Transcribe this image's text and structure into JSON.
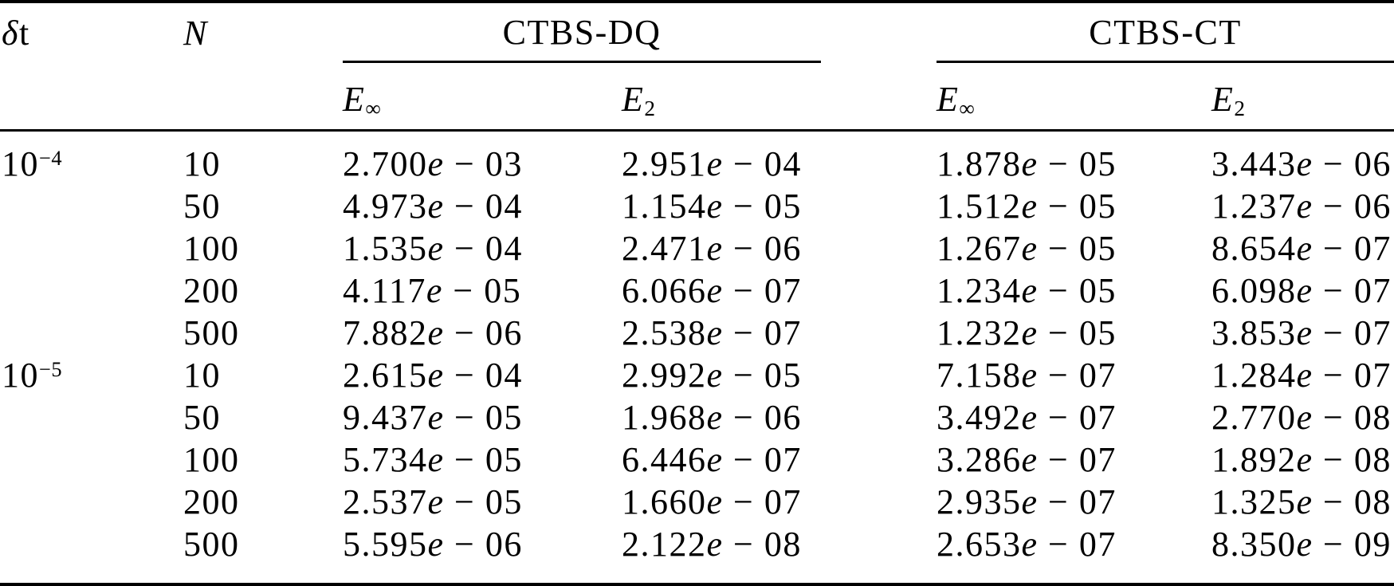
{
  "page": {
    "background_color": "#ffffff",
    "text_color": "#000000"
  },
  "table": {
    "header": {
      "dt": {
        "delta": "δ",
        "t": "t"
      },
      "n": "N",
      "groups": [
        {
          "label": "CTBS-DQ",
          "subcols": [
            {
              "base": "E",
              "sub": "∞"
            },
            {
              "base": "E",
              "sub": "2"
            }
          ]
        },
        {
          "label": "CTBS-CT",
          "subcols": [
            {
              "base": "E",
              "sub": "∞"
            },
            {
              "base": "E",
              "sub": "2"
            }
          ]
        }
      ]
    },
    "row_groups": [
      {
        "dt_base": "10",
        "dt_exp": "−4",
        "rows": [
          {
            "n": "10",
            "values": [
              "2.700e − 03",
              "2.951e − 04",
              "1.878e − 05",
              "3.443e − 06"
            ]
          },
          {
            "n": "50",
            "values": [
              "4.973e − 04",
              "1.154e − 05",
              "1.512e − 05",
              "1.237e − 06"
            ]
          },
          {
            "n": "100",
            "values": [
              "1.535e − 04",
              "2.471e − 06",
              "1.267e − 05",
              "8.654e − 07"
            ]
          },
          {
            "n": "200",
            "values": [
              "4.117e − 05",
              "6.066e − 07",
              "1.234e − 05",
              "6.098e − 07"
            ]
          },
          {
            "n": "500",
            "values": [
              "7.882e − 06",
              "2.538e − 07",
              "1.232e − 05",
              "3.853e − 07"
            ]
          }
        ]
      },
      {
        "dt_base": "10",
        "dt_exp": "−5",
        "rows": [
          {
            "n": "10",
            "values": [
              "2.615e − 04",
              "2.992e − 05",
              "7.158e − 07",
              "1.284e − 07"
            ]
          },
          {
            "n": "50",
            "values": [
              "9.437e − 05",
              "1.968e − 06",
              "3.492e − 07",
              "2.770e − 08"
            ]
          },
          {
            "n": "100",
            "values": [
              "5.734e − 05",
              "6.446e − 07",
              "3.286e − 07",
              "1.892e − 08"
            ]
          },
          {
            "n": "200",
            "values": [
              "2.537e − 05",
              "1.660e − 07",
              "2.935e − 07",
              "1.325e − 08"
            ]
          },
          {
            "n": "500",
            "values": [
              "5.595e − 06",
              "2.122e − 08",
              "2.653e − 07",
              "8.350e − 09"
            ]
          }
        ]
      }
    ]
  }
}
